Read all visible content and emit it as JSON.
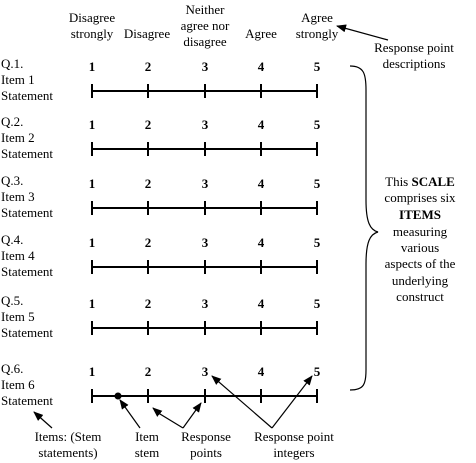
{
  "response_descriptions": [
    [
      "Disagree",
      "strongly"
    ],
    [
      "Disagree"
    ],
    [
      "Neither",
      "agree nor",
      "disagree"
    ],
    [
      "Agree"
    ],
    [
      "Agree",
      "strongly"
    ]
  ],
  "response_descriptions_note": [
    "Response point",
    "descriptions"
  ],
  "scale_points": [
    "1",
    "2",
    "3",
    "4",
    "5"
  ],
  "items": [
    {
      "q": "Q.1.",
      "item": "Item 1",
      "stmt": "Statement"
    },
    {
      "q": "Q.2.",
      "item": "Item 2",
      "stmt": "Statement"
    },
    {
      "q": "Q.3.",
      "item": "Item 3",
      "stmt": "Statement"
    },
    {
      "q": "Q.4.",
      "item": "Item 4",
      "stmt": "Statement"
    },
    {
      "q": "Q.5.",
      "item": "Item 5",
      "stmt": "Statement"
    },
    {
      "q": "Q.6.",
      "item": "Item 6",
      "stmt": "Statement"
    }
  ],
  "scale_note": {
    "line1": "This",
    "bold1": "SCALE",
    "line2": "comprises six",
    "bold2": "ITEMS",
    "rest": [
      "measuring",
      "various",
      "aspects of the",
      "underlying",
      "construct"
    ]
  },
  "bottom_labels": {
    "items": [
      "Items: (Stem",
      "statements)"
    ],
    "stem": [
      "Item",
      "stem"
    ],
    "points": [
      "Response",
      "points"
    ],
    "integers": [
      "Response point",
      "integers"
    ]
  }
}
